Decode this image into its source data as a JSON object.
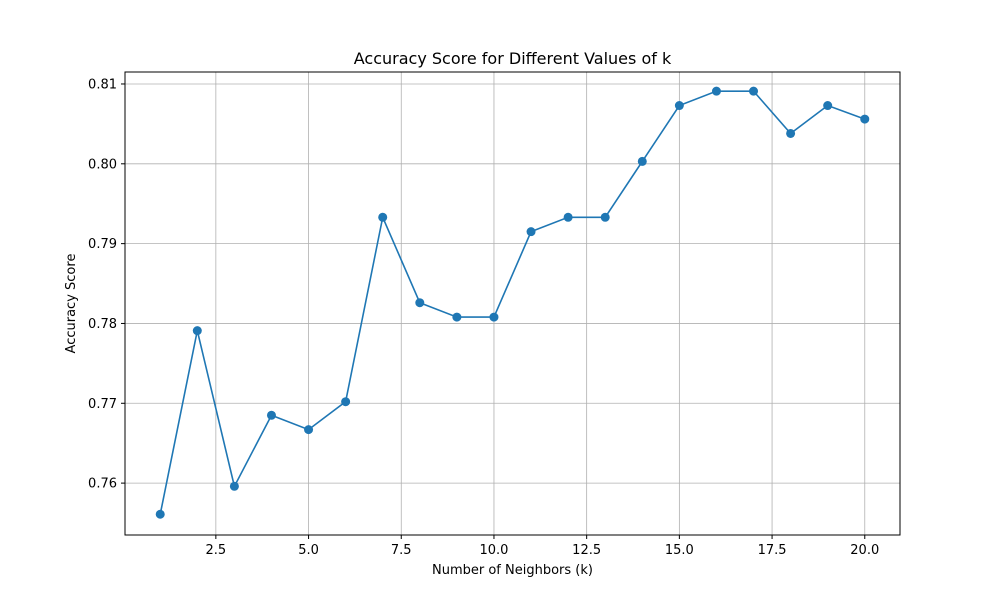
{
  "chart_data": {
    "type": "line",
    "title": "Accuracy Score for Different Values of k",
    "xlabel": "Number of Neighbors (k)",
    "ylabel": "Accuracy Score",
    "xlim": [
      0.05,
      20.95
    ],
    "ylim": [
      0.7535,
      0.8115
    ],
    "xticks": [
      2.5,
      5.0,
      7.5,
      10.0,
      12.5,
      15.0,
      17.5,
      20.0
    ],
    "xtick_labels": [
      "2.5",
      "5.0",
      "7.5",
      "10.0",
      "12.5",
      "15.0",
      "17.5",
      "20.0"
    ],
    "yticks": [
      0.76,
      0.77,
      0.78,
      0.79,
      0.8,
      0.81
    ],
    "ytick_labels": [
      "0.76",
      "0.77",
      "0.78",
      "0.79",
      "0.80",
      "0.81"
    ],
    "grid": true,
    "series_color": "#1f77b4",
    "x": [
      1,
      2,
      3,
      4,
      5,
      6,
      7,
      8,
      9,
      10,
      11,
      12,
      13,
      14,
      15,
      16,
      17,
      18,
      19,
      20
    ],
    "y": [
      0.7561,
      0.7791,
      0.7596,
      0.7685,
      0.7667,
      0.7702,
      0.7933,
      0.7826,
      0.7808,
      0.7808,
      0.7915,
      0.7933,
      0.7933,
      0.8003,
      0.8073,
      0.8091,
      0.8091,
      0.8038,
      0.8073,
      0.8056
    ]
  }
}
